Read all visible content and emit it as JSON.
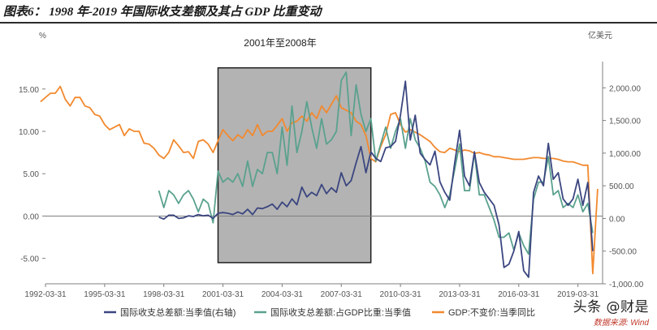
{
  "figure_title": "图表6： 1998 年-2019 年国际收支差额及其占 GDP 比重变动",
  "watermark": {
    "main": "头条 @财是",
    "sub": "数据来源: Wind"
  },
  "colors": {
    "orange": "#f2892e",
    "navy": "#3b4680",
    "teal": "#5aa18e",
    "shade": "#b3b3b3",
    "axis": "#7f7f7f"
  },
  "chart_data": {
    "type": "line",
    "title": "2001年至2008年",
    "left_unit": "%",
    "right_unit": "亿美元",
    "left_ylim": [
      -8.0,
      19.0
    ],
    "right_ylim": [
      -1000,
      2500
    ],
    "left_ticks": [
      15.0,
      10.0,
      5.0,
      0.0,
      -5.0
    ],
    "left_tick_labels": [
      "15.00",
      "10.00",
      "5.00",
      "0.00",
      "-5.00"
    ],
    "right_ticks": [
      2000,
      1500,
      1000,
      500,
      0,
      -500,
      -1000
    ],
    "right_tick_labels": [
      "2,000.00",
      "1,500.00",
      "1,000.00",
      "500.00",
      "0.00",
      "-500.00",
      "-1,000.00"
    ],
    "x_range": [
      1992.25,
      2020.5
    ],
    "x_ticks": [
      1992.25,
      1995.25,
      1998.25,
      2001.25,
      2004.25,
      2007.25,
      2010.25,
      2013.25,
      2016.25,
      2019.25
    ],
    "x_tick_labels": [
      "1992-03-31",
      "1995-03-31",
      "1998-03-31",
      "2001-03-31",
      "2004-03-31",
      "2007-03-31",
      "2010-03-31",
      "2013-03-31",
      "2016-03-31",
      "2019-03-31"
    ],
    "shaded_region": {
      "from": 2001.0,
      "to": 2008.75,
      "left_from": 17.5,
      "left_to": -5.5
    },
    "legend_position": "bottom",
    "series": [
      {
        "name": "国际收支总差额:当季值(右轴)",
        "axis": "right",
        "color": "#3b4680",
        "x": [
          1998.0,
          1998.25,
          1998.5,
          1998.75,
          1999.0,
          1999.25,
          1999.5,
          1999.75,
          2000.0,
          2000.25,
          2000.5,
          2000.75,
          2001.0,
          2001.25,
          2001.5,
          2001.75,
          2002.0,
          2002.25,
          2002.5,
          2002.75,
          2003.0,
          2003.25,
          2003.5,
          2003.75,
          2004.0,
          2004.25,
          2004.5,
          2004.75,
          2005.0,
          2005.25,
          2005.5,
          2005.75,
          2006.0,
          2006.25,
          2006.5,
          2006.75,
          2007.0,
          2007.25,
          2007.5,
          2007.75,
          2008.0,
          2008.25,
          2008.5,
          2008.75,
          2009.0,
          2009.25,
          2009.5,
          2009.75,
          2010.0,
          2010.25,
          2010.5,
          2010.75,
          2011.0,
          2011.25,
          2011.5,
          2011.75,
          2012.0,
          2012.25,
          2012.5,
          2012.75,
          2013.0,
          2013.25,
          2013.5,
          2013.75,
          2014.0,
          2014.25,
          2014.5,
          2014.75,
          2015.0,
          2015.25,
          2015.5,
          2015.75,
          2016.0,
          2016.25,
          2016.5,
          2016.75,
          2017.0,
          2017.25,
          2017.5,
          2017.75,
          2018.0,
          2018.25,
          2018.5,
          2018.75,
          2019.0,
          2019.25,
          2019.5,
          2019.75,
          2020.0
        ],
        "y": [
          20,
          -10,
          50,
          50,
          0,
          10,
          40,
          30,
          60,
          40,
          50,
          0,
          80,
          90,
          80,
          60,
          100,
          70,
          140,
          60,
          160,
          150,
          180,
          220,
          140,
          250,
          180,
          300,
          210,
          480,
          330,
          400,
          350,
          520,
          380,
          470,
          400,
          700,
          500,
          580,
          850,
          1100,
          700,
          1020,
          920,
          870,
          1080,
          1100,
          1180,
          1580,
          2100,
          1200,
          1580,
          1000,
          900,
          820,
          1030,
          560,
          400,
          280,
          850,
          1350,
          650,
          500,
          1020,
          550,
          400,
          300,
          200,
          -100,
          -750,
          -700,
          -500,
          -200,
          -800,
          -900,
          400,
          650,
          500,
          1150,
          600,
          700,
          300,
          200,
          300,
          600,
          200,
          550,
          -500
        ]
      },
      {
        "name": "国际收支总差额:占GDP比重:当季值",
        "axis": "left",
        "color": "#5aa18e",
        "x": [
          1998.0,
          1998.25,
          1998.5,
          1998.75,
          1999.0,
          1999.25,
          1999.5,
          1999.75,
          2000.0,
          2000.25,
          2000.5,
          2000.75,
          2001.0,
          2001.25,
          2001.5,
          2001.75,
          2002.0,
          2002.25,
          2002.5,
          2002.75,
          2003.0,
          2003.25,
          2003.5,
          2003.75,
          2004.0,
          2004.25,
          2004.5,
          2004.75,
          2005.0,
          2005.25,
          2005.5,
          2005.75,
          2006.0,
          2006.25,
          2006.5,
          2006.75,
          2007.0,
          2007.25,
          2007.5,
          2007.75,
          2008.0,
          2008.25,
          2008.5,
          2008.75,
          2009.0,
          2009.25,
          2009.5,
          2009.75,
          2010.0,
          2010.25,
          2010.5,
          2010.75,
          2011.0,
          2011.25,
          2011.5,
          2011.75,
          2012.0,
          2012.25,
          2012.5,
          2012.75,
          2013.0,
          2013.25,
          2013.5,
          2013.75,
          2014.0,
          2014.25,
          2014.5,
          2014.75,
          2015.0,
          2015.25,
          2015.5,
          2015.75,
          2016.0,
          2016.25,
          2016.5,
          2016.75,
          2017.0,
          2017.25,
          2017.5,
          2017.75,
          2018.0,
          2018.25,
          2018.5,
          2018.75,
          2019.0,
          2019.25,
          2019.5,
          2019.75,
          2020.0
        ],
        "y": [
          3.0,
          1.0,
          3.0,
          2.5,
          1.5,
          2.5,
          3.0,
          2.0,
          0.5,
          2.0,
          1.5,
          -0.8,
          5.3,
          4.0,
          4.5,
          4.0,
          5.0,
          3.5,
          6.5,
          3.5,
          5.5,
          5.0,
          7.5,
          7.5,
          5.0,
          10.5,
          6.0,
          13.0,
          7.5,
          10.0,
          13.5,
          10.5,
          8.0,
          11.5,
          8.5,
          9.0,
          10.0,
          16.0,
          17.0,
          9.5,
          15.5,
          12.0,
          10.0,
          11.5,
          6.5,
          8.5,
          10.5,
          8.0,
          10.0,
          11.5,
          8.0,
          11.5,
          9.0,
          8.0,
          6.5,
          4.0,
          3.5,
          2.5,
          1.0,
          2.5,
          5.5,
          8.5,
          3.0,
          3.0,
          7.5,
          2.5,
          2.5,
          1.0,
          -0.5,
          -2.5,
          -2.5,
          -2.0,
          -4.0,
          -2.0,
          -3.5,
          -4.5,
          2.0,
          4.0,
          4.0,
          7.0,
          2.5,
          3.0,
          1.0,
          1.5,
          1.0,
          2.5,
          0.5,
          1.5,
          -2.0
        ]
      },
      {
        "name": "GDP:不变价:当季同比",
        "axis": "left",
        "color": "#f2892e",
        "x": [
          1992.0,
          1992.25,
          1992.5,
          1992.75,
          1993.0,
          1993.25,
          1993.5,
          1993.75,
          1994.0,
          1994.25,
          1994.5,
          1994.75,
          1995.0,
          1995.25,
          1995.5,
          1995.75,
          1996.0,
          1996.25,
          1996.5,
          1996.75,
          1997.0,
          1997.25,
          1997.5,
          1997.75,
          1998.0,
          1998.25,
          1998.5,
          1998.75,
          1999.0,
          1999.25,
          1999.5,
          1999.75,
          2000.0,
          2000.25,
          2000.5,
          2000.75,
          2001.0,
          2001.25,
          2001.5,
          2001.75,
          2002.0,
          2002.25,
          2002.5,
          2002.75,
          2003.0,
          2003.25,
          2003.5,
          2003.75,
          2004.0,
          2004.25,
          2004.5,
          2004.75,
          2005.0,
          2005.25,
          2005.5,
          2005.75,
          2006.0,
          2006.25,
          2006.5,
          2006.75,
          2007.0,
          2007.25,
          2007.5,
          2007.75,
          2008.0,
          2008.25,
          2008.5,
          2008.75,
          2009.0,
          2009.25,
          2009.5,
          2009.75,
          2010.0,
          2010.25,
          2010.5,
          2010.75,
          2011.0,
          2011.25,
          2011.5,
          2011.75,
          2012.0,
          2012.25,
          2012.5,
          2012.75,
          2013.0,
          2013.25,
          2013.5,
          2013.75,
          2014.0,
          2014.25,
          2014.5,
          2014.75,
          2015.0,
          2015.25,
          2015.5,
          2015.75,
          2016.0,
          2016.25,
          2016.5,
          2016.75,
          2017.0,
          2017.25,
          2017.5,
          2017.75,
          2018.0,
          2018.25,
          2018.5,
          2018.75,
          2019.0,
          2019.25,
          2019.5,
          2019.75,
          2020.0,
          2020.25
        ],
        "y": [
          13.5,
          14.0,
          14.5,
          14.5,
          15.3,
          13.8,
          13.0,
          14.0,
          14.0,
          13.0,
          12.8,
          12.0,
          11.8,
          10.8,
          10.2,
          10.5,
          10.8,
          9.5,
          10.3,
          10.0,
          10.0,
          8.6,
          8.5,
          8.0,
          7.2,
          6.8,
          7.5,
          9.0,
          8.3,
          7.5,
          7.6,
          6.8,
          8.8,
          9.0,
          8.5,
          7.5,
          8.9,
          10.2,
          9.5,
          8.9,
          9.6,
          9.2,
          10.2,
          9.5,
          10.8,
          9.5,
          10.0,
          10.0,
          10.7,
          11.5,
          10.0,
          11.0,
          11.2,
          11.8,
          11.2,
          12.2,
          11.5,
          13.0,
          12.2,
          13.2,
          14.2,
          12.8,
          12.5,
          12.2,
          11.2,
          10.8,
          9.5,
          6.8,
          6.4,
          8.2,
          9.6,
          12.0,
          12.2,
          10.8,
          9.9,
          10.2,
          9.9,
          9.6,
          9.2,
          8.8,
          8.1,
          7.6,
          7.5,
          8.0,
          7.8,
          7.6,
          7.8,
          7.7,
          7.4,
          7.5,
          7.3,
          7.2,
          7.0,
          7.0,
          6.9,
          6.8,
          6.7,
          6.7,
          6.7,
          6.8,
          6.9,
          6.9,
          6.8,
          6.8,
          6.8,
          6.7,
          6.5,
          6.4,
          6.4,
          6.2,
          6.0,
          6.0,
          -6.8,
          3.2
        ]
      }
    ]
  }
}
